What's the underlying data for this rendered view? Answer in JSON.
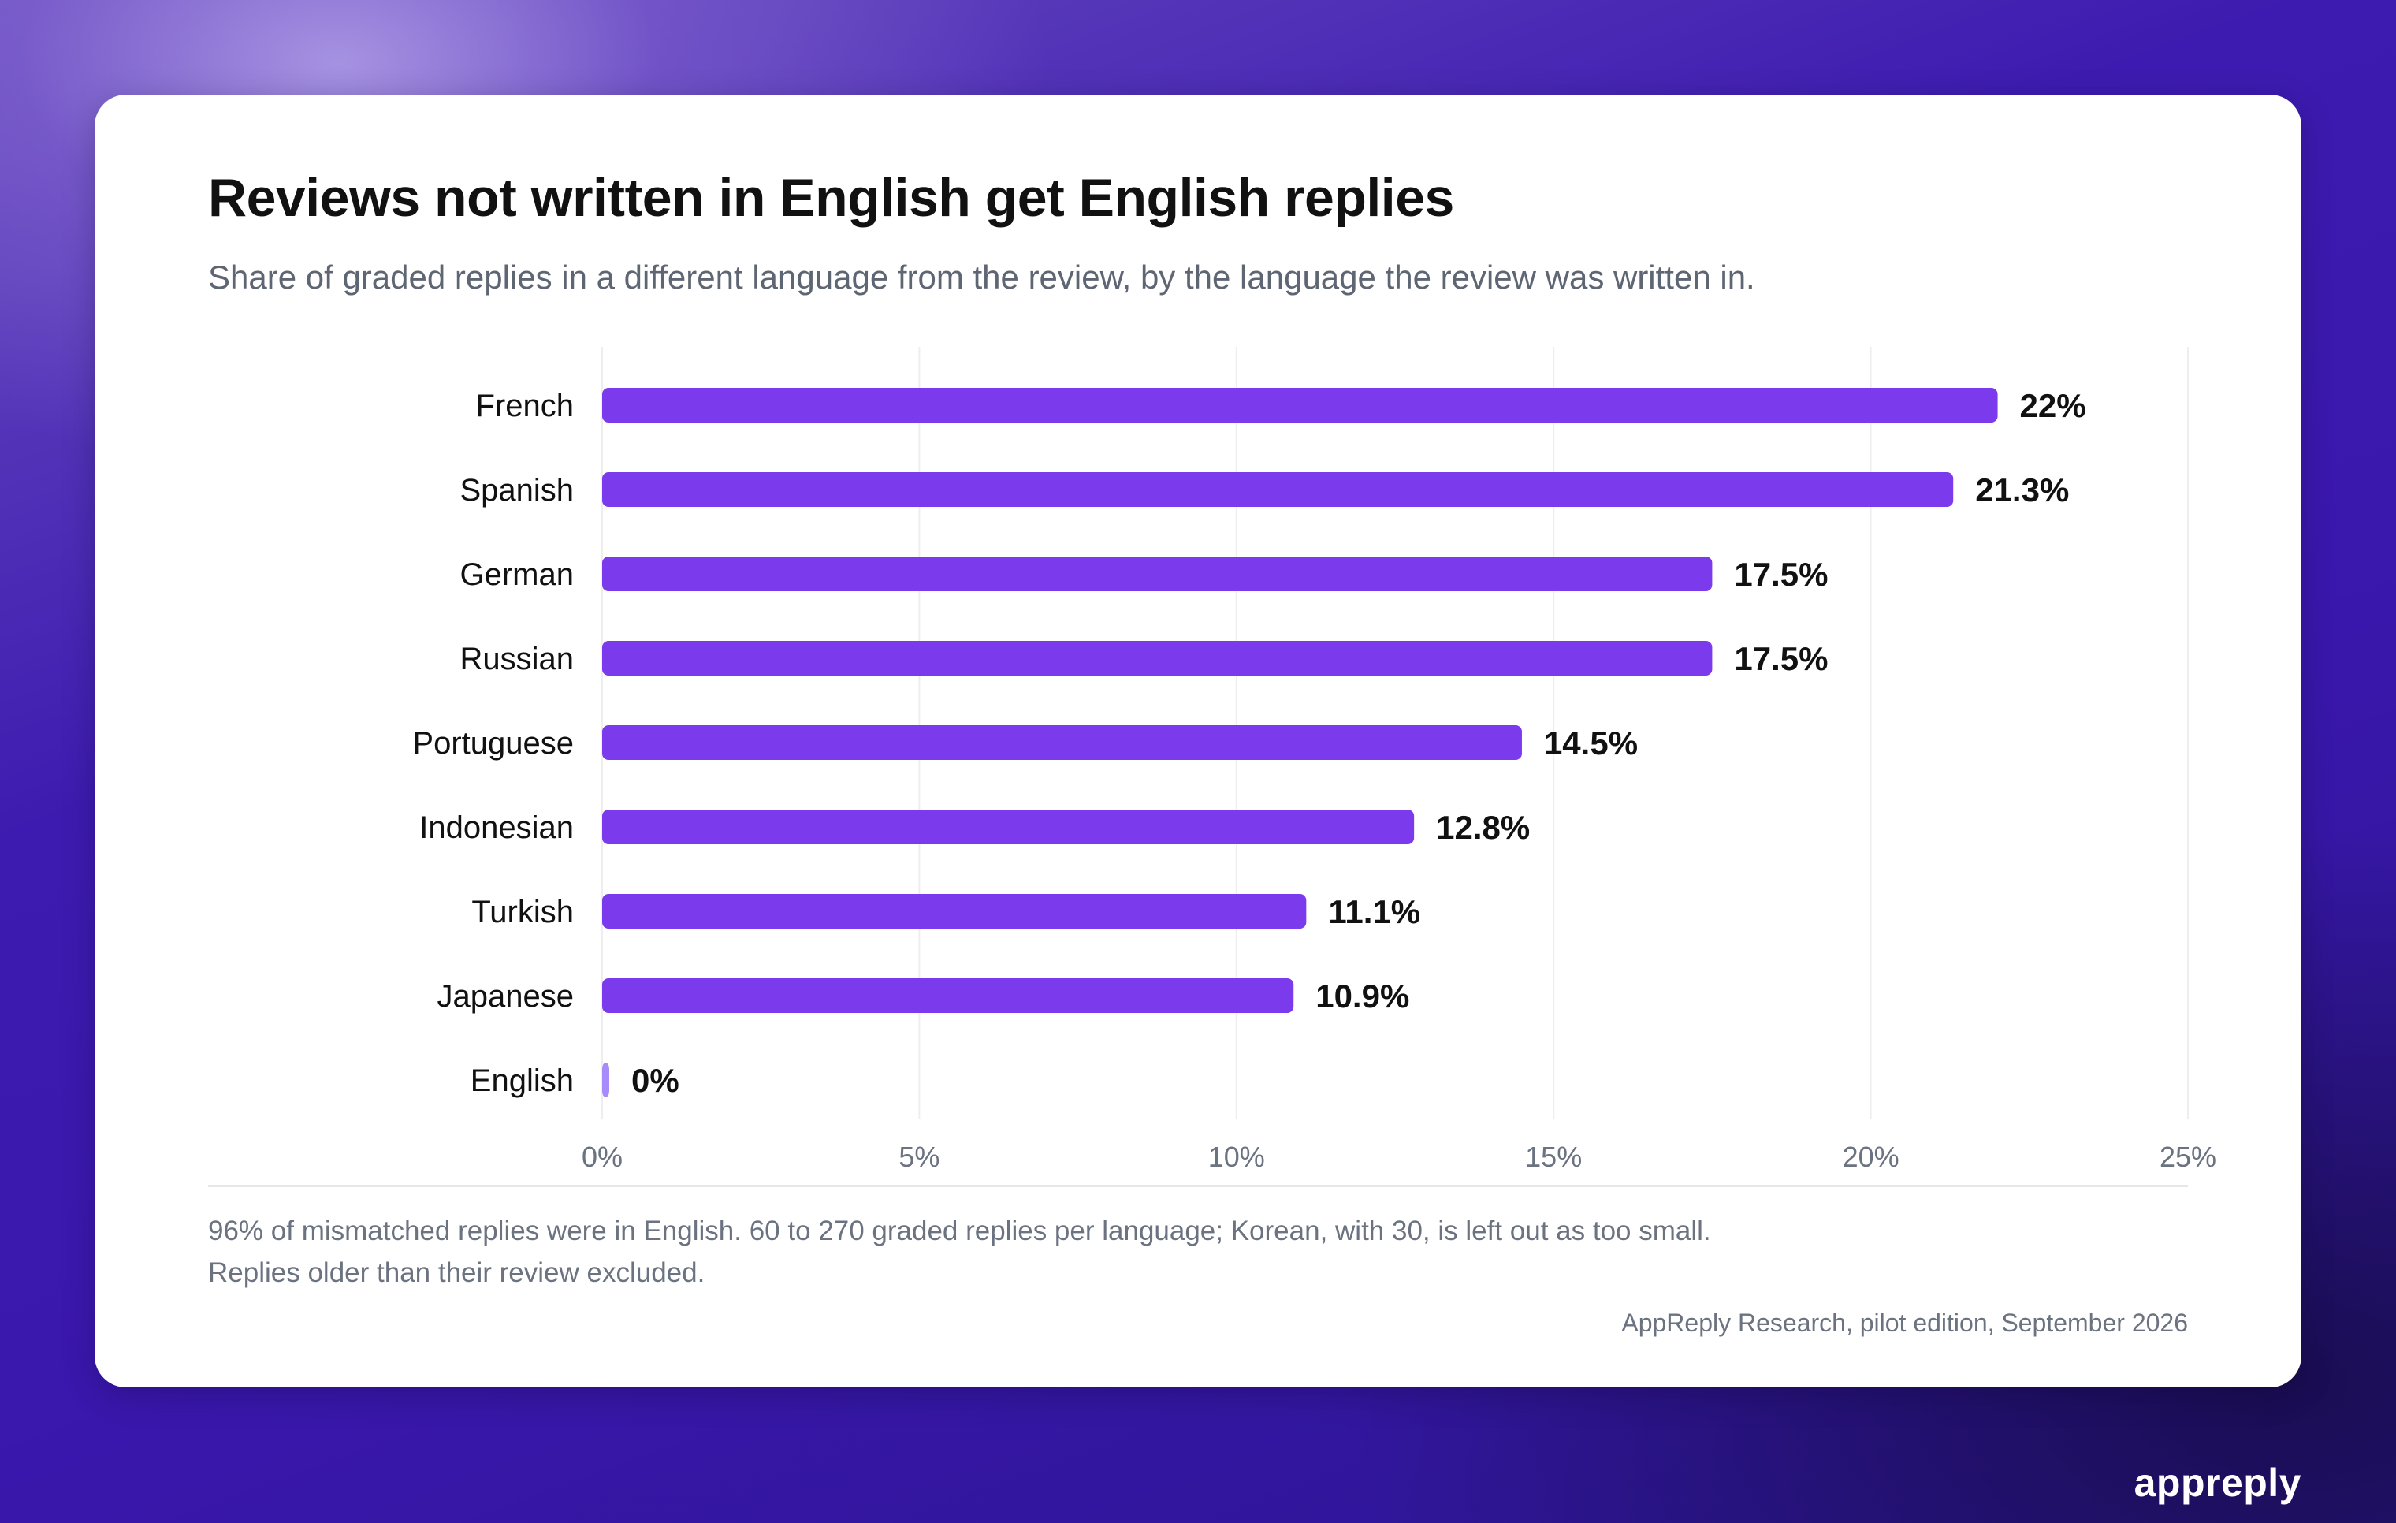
{
  "title": "Reviews not written in English get English replies",
  "subtitle": "Share of graded replies in a different language from the review, by the language the review was written in.",
  "note": "96% of mismatched replies were in English. 60 to 270 graded replies per language; Korean, with 30, is left out as too small. Replies older than their review excluded.",
  "source": "AppReply Research, pilot edition, September 2026",
  "brand": "appreply",
  "colors": {
    "bar": "#7c3aed",
    "bar_zero": "#a78bfa",
    "grid": "#eeeeee"
  },
  "chart_data": {
    "type": "bar",
    "orientation": "horizontal",
    "categories": [
      "French",
      "Spanish",
      "German",
      "Russian",
      "Portuguese",
      "Indonesian",
      "Turkish",
      "Japanese",
      "English"
    ],
    "values": [
      22,
      21.3,
      17.5,
      17.5,
      14.5,
      12.8,
      11.1,
      10.9,
      0
    ],
    "value_labels": [
      "22%",
      "21.3%",
      "17.5%",
      "17.5%",
      "14.5%",
      "12.8%",
      "11.1%",
      "10.9%",
      "0%"
    ],
    "xlim": [
      0,
      25
    ],
    "xticks": [
      0,
      5,
      10,
      15,
      20,
      25
    ],
    "xtick_labels": [
      "0%",
      "5%",
      "10%",
      "15%",
      "20%",
      "25%"
    ],
    "grid": true
  }
}
